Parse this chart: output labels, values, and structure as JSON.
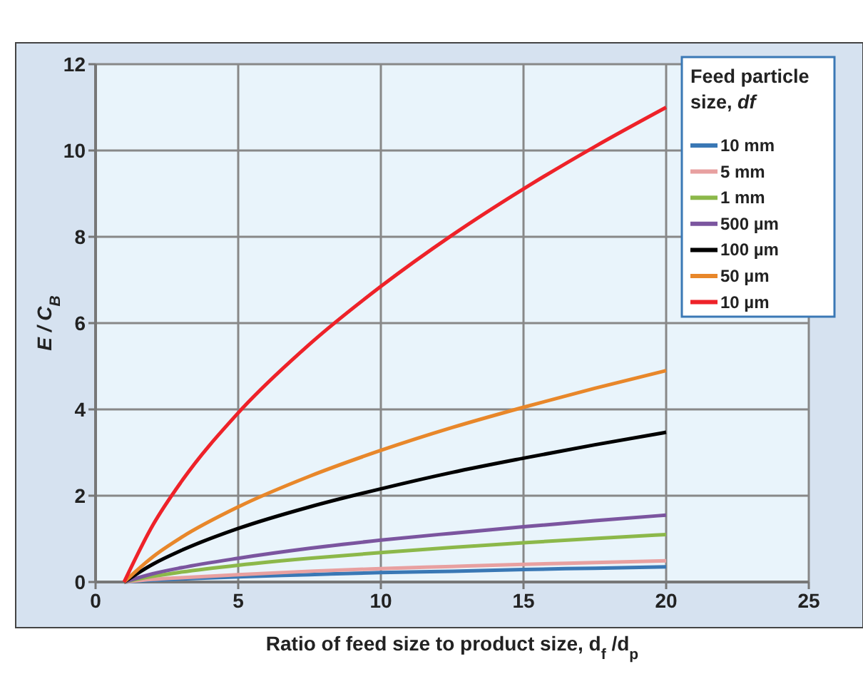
{
  "chart_data": {
    "type": "line",
    "xlabel": "Ratio of feed size to product size, d$_{f}$ /d$_{p}$",
    "ylabel": "E / C$_{B}$",
    "legend_title": "Feed particle size, df",
    "x": [
      1,
      2,
      3,
      5,
      7.5,
      10,
      12.5,
      15,
      17.5,
      20
    ],
    "xlim": [
      0,
      25
    ],
    "xticks": [
      0,
      5,
      10,
      15,
      20,
      25
    ],
    "ylim": [
      0,
      12
    ],
    "yticks": [
      0,
      2,
      4,
      6,
      8,
      10,
      12
    ],
    "grid": true,
    "legend": "top right",
    "marker": "none",
    "line_style": "solid",
    "series": [
      {
        "name": "10 mm",
        "color": "#3a78b5",
        "values": [
          0,
          0.04,
          0.07,
          0.12,
          0.17,
          0.22,
          0.25,
          0.29,
          0.32,
          0.35
        ]
      },
      {
        "name": "5 mm",
        "color": "#e8a0a0",
        "values": [
          0,
          0.06,
          0.1,
          0.17,
          0.25,
          0.31,
          0.36,
          0.41,
          0.45,
          0.49
        ]
      },
      {
        "name": "1 mm",
        "color": "#8cb84a",
        "values": [
          0,
          0.13,
          0.23,
          0.39,
          0.55,
          0.68,
          0.8,
          0.91,
          1.01,
          1.1
        ]
      },
      {
        "name": "500 µm",
        "color": "#7b559f",
        "values": [
          0,
          0.19,
          0.33,
          0.55,
          0.78,
          0.97,
          1.13,
          1.28,
          1.42,
          1.55
        ]
      },
      {
        "name": "100 µm",
        "color": "#000000",
        "values": [
          0,
          0.41,
          0.73,
          1.24,
          1.74,
          2.16,
          2.54,
          2.87,
          3.18,
          3.47
        ]
      },
      {
        "name": "50 µm",
        "color": "#e8872a",
        "values": [
          0,
          0.58,
          1.03,
          1.74,
          2.45,
          3.05,
          3.58,
          4.05,
          4.49,
          4.9
        ]
      },
      {
        "name": "10 µm",
        "color": "#ee2229",
        "values": [
          0,
          1.31,
          2.32,
          3.92,
          5.51,
          6.85,
          8.04,
          9.11,
          10.09,
          11.0
        ]
      }
    ]
  }
}
